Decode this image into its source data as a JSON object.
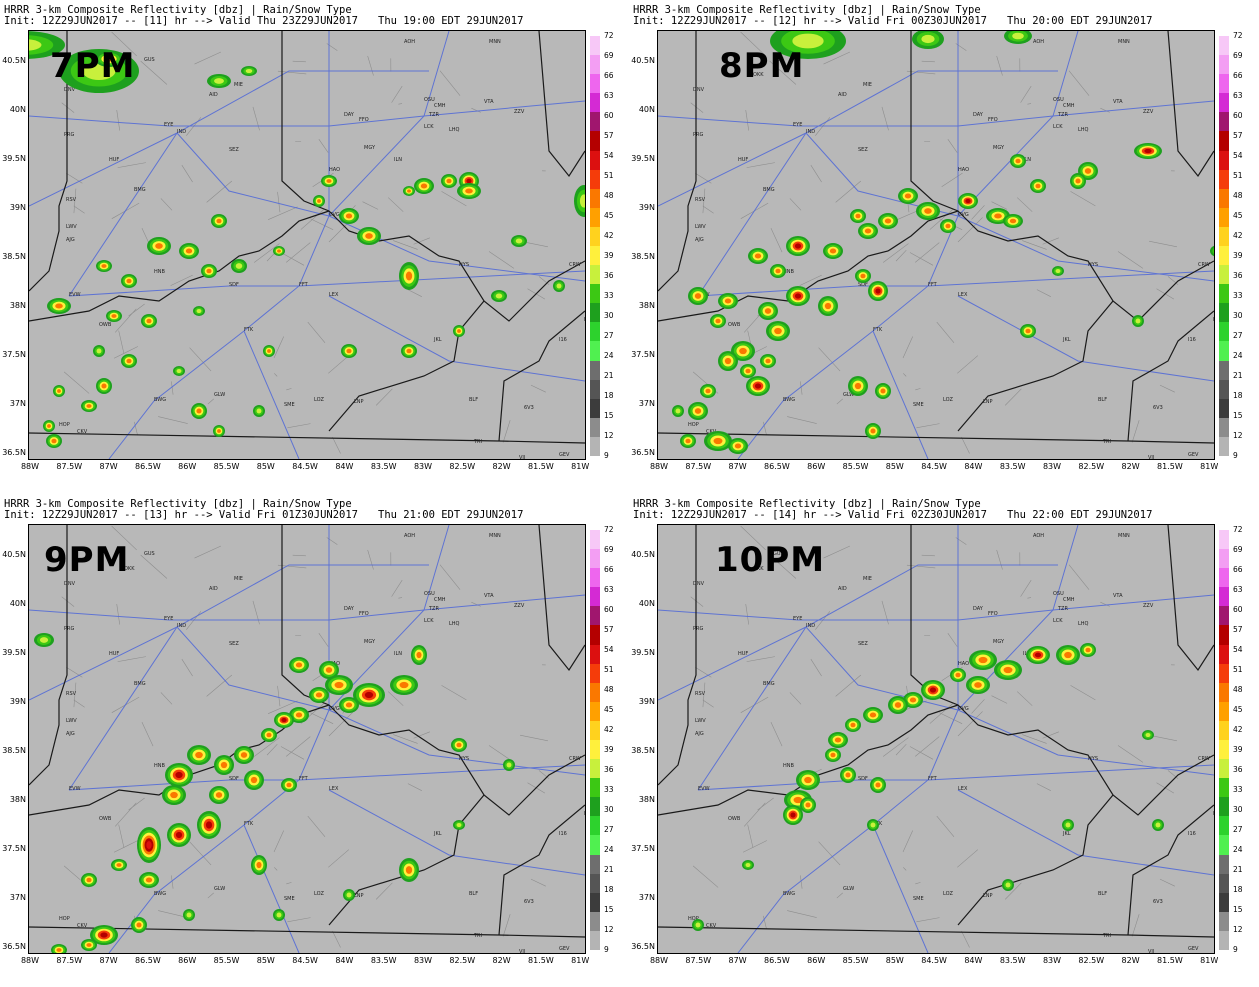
{
  "panels": [
    {
      "id": "p1",
      "header_line1": "HRRR 3-km Composite Reflectivity [dbz] | Rain/Snow Type",
      "header_line2": "Init: 12Z29JUN2017 -- [11] hr --> Valid Thu 23Z29JUN2017",
      "valid_local": "Thu 19:00 EDT 29JUN2017",
      "big_label": "7PM"
    },
    {
      "id": "p2",
      "header_line1": "HRRR 3-km Composite Reflectivity [dbz] | Rain/Snow Type",
      "header_line2": "Init: 12Z29JUN2017 -- [12] hr --> Valid Fri 00Z30JUN2017",
      "valid_local": "Thu 20:00 EDT 29JUN2017",
      "big_label": "8PM"
    },
    {
      "id": "p3",
      "header_line1": "HRRR 3-km Composite Reflectivity [dbz] | Rain/Snow Type",
      "header_line2": "Init: 12Z29JUN2017 -- [13] hr --> Valid Fri 01Z30JUN2017",
      "valid_local": "Thu 21:00 EDT 29JUN2017",
      "big_label": "9PM"
    },
    {
      "id": "p4",
      "header_line1": "HRRR 3-km Composite Reflectivity [dbz] | Rain/Snow Type",
      "header_line2": "Init: 12Z29JUN2017 -- [14] hr --> Valid Fri 02Z30JUN2017",
      "valid_local": "Thu 22:00 EDT 29JUN2017",
      "big_label": "10PM"
    }
  ],
  "lat_labels": [
    "40.5N",
    "40N",
    "39.5N",
    "39N",
    "38.5N",
    "38N",
    "37.5N",
    "37N",
    "36.5N"
  ],
  "lon_labels": [
    "88W",
    "87.5W",
    "87W",
    "86.5W",
    "86W",
    "85.5W",
    "85W",
    "84.5W",
    "84W",
    "83.5W",
    "83W",
    "82.5W",
    "82W",
    "81.5W",
    "81W"
  ],
  "colorbar": {
    "labels": [
      "72",
      "69",
      "66",
      "63",
      "60",
      "57",
      "54",
      "51",
      "48",
      "45",
      "42",
      "39",
      "36",
      "33",
      "30",
      "27",
      "24",
      "21",
      "18",
      "15",
      "12",
      "9"
    ],
    "colors": [
      "#f7c8f7",
      "#f39ef3",
      "#ee66ee",
      "#d42ad4",
      "#a0166e",
      "#b40000",
      "#dc1010",
      "#f53c0a",
      "#fa7800",
      "#ffa000",
      "#ffd21e",
      "#fff03c",
      "#c8f03c",
      "#3cc814",
      "#1ea01e",
      "#2dd22d",
      "#50f050",
      "#6e6e6e",
      "#555555",
      "#3c3c3c",
      "#8c8c8c",
      "#b4b4b4"
    ]
  },
  "stations": [
    "AOH",
    "MNN",
    "PHD",
    "GUS",
    "OKK",
    "DNV",
    "MIE",
    "AID",
    "OSU",
    "CMH",
    "VTA",
    "ZZV",
    "PRG",
    "EYE",
    "IND",
    "DAY",
    "FFO",
    "TZR",
    "LCK",
    "LHQ",
    "HUF",
    "SEZ",
    "MGY",
    "ILN",
    "HAO",
    "BMG",
    "CVG",
    "RSV",
    "LWV",
    "AJG",
    "HNB",
    "EVW",
    "OWB",
    "SDF",
    "FFT",
    "LEX",
    "FTK",
    "JKL",
    "BKW",
    "I16",
    "HOP",
    "CKV",
    "BWG",
    "GLW",
    "SME",
    "LOZ",
    "LNP",
    "BLF",
    "6V3",
    "MKJ",
    "TRI",
    "VJI",
    "GEV",
    "HYS",
    "CRW"
  ]
}
